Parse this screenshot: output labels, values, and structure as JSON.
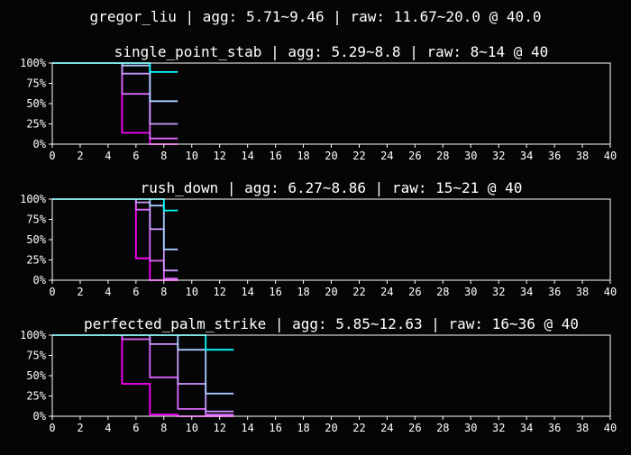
{
  "suptitle": "gregor_liu | agg: 5.71~9.46 | raw: 11.67~20.0 @ 40.0",
  "series_colors": [
    "#ff00ff",
    "#dd66ff",
    "#cc99ff",
    "#aaccff",
    "#00ffff"
  ],
  "chart_data": [
    {
      "type": "line",
      "title": "single_point_stab | agg: 5.29~8.8 | raw: 8~14 @ 40",
      "xlim": [
        0,
        40
      ],
      "ylim": [
        0,
        100
      ],
      "x_ticks": [
        "0",
        "2",
        "4",
        "6",
        "8",
        "10",
        "12",
        "14",
        "16",
        "18",
        "20",
        "22",
        "24",
        "26",
        "28",
        "30",
        "32",
        "34",
        "36",
        "38",
        "40"
      ],
      "y_ticks": [
        "0%",
        "25%",
        "50%",
        "75%",
        "100%"
      ],
      "series": [
        {
          "color": "#ff00ff",
          "points": [
            [
              5,
              100
            ],
            [
              5,
              14
            ],
            [
              7,
              14
            ],
            [
              7,
              0
            ],
            [
              9,
              0
            ]
          ]
        },
        {
          "color": "#dd66ff",
          "points": [
            [
              5,
              100
            ],
            [
              5,
              62
            ],
            [
              7,
              62
            ],
            [
              7,
              7
            ],
            [
              9,
              7
            ]
          ]
        },
        {
          "color": "#cc99ff",
          "points": [
            [
              5,
              100
            ],
            [
              5,
              87
            ],
            [
              7,
              87
            ],
            [
              7,
              25
            ],
            [
              9,
              25
            ]
          ]
        },
        {
          "color": "#aaccff",
          "points": [
            [
              5,
              100
            ],
            [
              5,
              97
            ],
            [
              7,
              97
            ],
            [
              7,
              53
            ],
            [
              9,
              53
            ]
          ]
        },
        {
          "color": "#00ffff",
          "points": [
            [
              0,
              100
            ],
            [
              7,
              100
            ],
            [
              7,
              89
            ],
            [
              9,
              89
            ]
          ]
        }
      ]
    },
    {
      "type": "line",
      "title": "rush_down | agg: 6.27~8.86 | raw: 15~21 @ 40",
      "xlim": [
        0,
        40
      ],
      "ylim": [
        0,
        100
      ],
      "x_ticks": [
        "0",
        "2",
        "4",
        "6",
        "8",
        "10",
        "12",
        "14",
        "16",
        "18",
        "20",
        "22",
        "24",
        "26",
        "28",
        "30",
        "32",
        "34",
        "36",
        "38",
        "40"
      ],
      "y_ticks": [
        "0%",
        "25%",
        "50%",
        "75%",
        "100%"
      ],
      "series": [
        {
          "color": "#ff00ff",
          "points": [
            [
              6,
              100
            ],
            [
              6,
              27
            ],
            [
              7,
              27
            ],
            [
              7,
              0
            ],
            [
              9,
              0
            ]
          ]
        },
        {
          "color": "#dd66ff",
          "points": [
            [
              6,
              100
            ],
            [
              6,
              87
            ],
            [
              7,
              87
            ],
            [
              7,
              24
            ],
            [
              8,
              24
            ],
            [
              8,
              2
            ],
            [
              9,
              2
            ]
          ]
        },
        {
          "color": "#cc99ff",
          "points": [
            [
              6,
              100
            ],
            [
              6,
              96
            ],
            [
              7,
              96
            ],
            [
              7,
              63
            ],
            [
              8,
              63
            ],
            [
              8,
              12
            ],
            [
              9,
              12
            ]
          ]
        },
        {
          "color": "#aaccff",
          "points": [
            [
              7,
              100
            ],
            [
              7,
              92
            ],
            [
              8,
              92
            ],
            [
              8,
              38
            ],
            [
              9,
              38
            ]
          ]
        },
        {
          "color": "#00ffff",
          "points": [
            [
              0,
              100
            ],
            [
              8,
              100
            ],
            [
              8,
              86
            ],
            [
              9,
              86
            ]
          ]
        }
      ]
    },
    {
      "type": "line",
      "title": "perfected_palm_strike | agg: 5.85~12.63 | raw: 16~36 @ 40",
      "xlim": [
        0,
        40
      ],
      "ylim": [
        0,
        100
      ],
      "x_ticks": [
        "0",
        "2",
        "4",
        "6",
        "8",
        "10",
        "12",
        "14",
        "16",
        "18",
        "20",
        "22",
        "24",
        "26",
        "28",
        "30",
        "32",
        "34",
        "36",
        "38",
        "40"
      ],
      "y_ticks": [
        "0%",
        "25%",
        "50%",
        "75%",
        "100%"
      ],
      "series": [
        {
          "color": "#ff00ff",
          "points": [
            [
              5,
              100
            ],
            [
              5,
              40
            ],
            [
              7,
              40
            ],
            [
              7,
              2
            ],
            [
              9,
              2
            ],
            [
              9,
              0
            ],
            [
              13,
              0
            ]
          ]
        },
        {
          "color": "#dd66ff",
          "points": [
            [
              5,
              100
            ],
            [
              5,
              95
            ],
            [
              7,
              95
            ],
            [
              7,
              48
            ],
            [
              9,
              48
            ],
            [
              9,
              9
            ],
            [
              11,
              9
            ],
            [
              11,
              2
            ],
            [
              13,
              2
            ]
          ]
        },
        {
          "color": "#cc99ff",
          "points": [
            [
              7,
              100
            ],
            [
              7,
              89
            ],
            [
              9,
              89
            ],
            [
              9,
              40
            ],
            [
              11,
              40
            ],
            [
              11,
              6
            ],
            [
              13,
              6
            ]
          ]
        },
        {
          "color": "#aaccff",
          "points": [
            [
              9,
              100
            ],
            [
              9,
              82
            ],
            [
              11,
              82
            ],
            [
              11,
              28
            ],
            [
              13,
              28
            ]
          ]
        },
        {
          "color": "#00ffff",
          "points": [
            [
              0,
              100
            ],
            [
              11,
              100
            ],
            [
              11,
              82
            ],
            [
              13,
              82
            ]
          ]
        }
      ]
    }
  ]
}
